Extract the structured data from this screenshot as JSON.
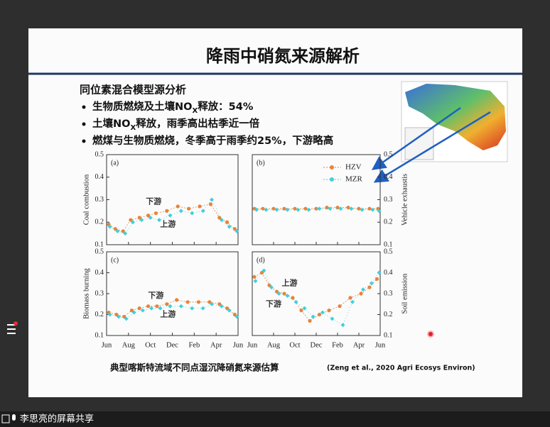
{
  "slide": {
    "title": "降雨中硝氮来源解析",
    "heading": "同位素混合模型源分析",
    "bullets": [
      {
        "before": "生物质燃烧及土壤NO",
        "sub": "X",
        "after": "释放：54%"
      },
      {
        "before": "土壤NO",
        "sub": "X",
        "after": "释放，雨季高出枯季近一倍"
      },
      {
        "before": "燃煤与生物质燃烧，冬季高于雨季约25%，下游略高",
        "sub": null,
        "after": null
      }
    ],
    "caption": "典型喀斯特流域不同点湿沉降硝氮来源估算",
    "citation": "(Zeng et al., 2020 Agri Ecosys Environ)"
  },
  "figure": {
    "legend": [
      {
        "name": "HZV",
        "color": "#e8833a"
      },
      {
        "name": "MZR",
        "color": "#3fd0dc"
      }
    ],
    "xlim": [
      0,
      12
    ],
    "xticks": [
      {
        "value": 0,
        "label": "Jun"
      },
      {
        "value": 2,
        "label": "Aug"
      },
      {
        "value": 4,
        "label": "Oct"
      },
      {
        "value": 6,
        "label": "Dec"
      },
      {
        "value": 8,
        "label": "Feb"
      },
      {
        "value": 10,
        "label": "Apr"
      },
      {
        "value": 12,
        "label": "Jun"
      }
    ],
    "ylim": [
      0.1,
      0.5
    ],
    "yticks": [
      0.1,
      0.2,
      0.3,
      0.4,
      0.5
    ],
    "panels": [
      {
        "letter": "(a)",
        "ylabel": "Coal combustion",
        "annotations": [
          "下游",
          "上游"
        ],
        "series": [
          {
            "x": [
              0.2,
              0.8,
              1.5,
              2.2,
              3.0,
              3.8,
              4.5,
              5.5,
              6.5,
              7.5,
              8.5,
              9.5,
              10.3,
              11.0,
              11.7
            ],
            "values": [
              0.19,
              0.17,
              0.16,
              0.21,
              0.22,
              0.23,
              0.24,
              0.25,
              0.27,
              0.26,
              0.27,
              0.28,
              0.22,
              0.2,
              0.17
            ]
          },
          {
            "x": [
              0.3,
              1.0,
              1.7,
              2.4,
              3.2,
              4.0,
              4.8,
              5.8,
              6.8,
              7.8,
              8.8,
              9.6,
              10.5,
              11.2,
              11.9
            ],
            "values": [
              0.18,
              0.16,
              0.15,
              0.2,
              0.21,
              0.22,
              0.21,
              0.23,
              0.25,
              0.24,
              0.25,
              0.3,
              0.21,
              0.18,
              0.16
            ]
          }
        ]
      },
      {
        "letter": "(b)",
        "ylabel": "Vehicle exhaustis",
        "annotations": [],
        "series": [
          {
            "x": [
              0.2,
              1.0,
              2.0,
              3.0,
              4.0,
              5.0,
              6.0,
              7.0,
              8.0,
              9.0,
              10.0,
              11.0,
              11.8
            ],
            "values": [
              0.26,
              0.26,
              0.26,
              0.26,
              0.26,
              0.26,
              0.26,
              0.265,
              0.265,
              0.265,
              0.26,
              0.26,
              0.26
            ]
          },
          {
            "x": [
              0.4,
              1.3,
              2.3,
              3.3,
              4.3,
              5.3,
              6.3,
              7.3,
              8.3,
              9.3,
              10.3,
              11.3,
              11.9
            ],
            "values": [
              0.255,
              0.255,
              0.255,
              0.255,
              0.255,
              0.255,
              0.26,
              0.26,
              0.26,
              0.26,
              0.255,
              0.255,
              0.25
            ]
          }
        ]
      },
      {
        "letter": "(c)",
        "ylabel": "Biomass burning",
        "annotations": [
          "下游",
          "上游"
        ],
        "series": [
          {
            "x": [
              0.2,
              0.9,
              1.6,
              2.3,
              3.0,
              3.8,
              4.6,
              5.5,
              6.4,
              7.4,
              8.4,
              9.4,
              10.3,
              11.0,
              11.7
            ],
            "values": [
              0.21,
              0.2,
              0.19,
              0.22,
              0.23,
              0.24,
              0.24,
              0.25,
              0.27,
              0.26,
              0.26,
              0.26,
              0.25,
              0.23,
              0.2
            ]
          },
          {
            "x": [
              0.3,
              1.1,
              1.8,
              2.5,
              3.3,
              4.1,
              4.9,
              5.8,
              6.8,
              7.8,
              8.8,
              9.6,
              10.5,
              11.2,
              11.9
            ],
            "values": [
              0.2,
              0.19,
              0.18,
              0.21,
              0.22,
              0.23,
              0.23,
              0.24,
              0.24,
              0.23,
              0.23,
              0.25,
              0.24,
              0.22,
              0.19
            ]
          }
        ]
      },
      {
        "letter": "(d)",
        "ylabel": "Soil emission",
        "annotations": [
          "上游",
          "下游"
        ],
        "series": [
          {
            "x": [
              0.2,
              0.9,
              1.6,
              2.3,
              3.0,
              3.8,
              4.6,
              5.4,
              6.3,
              7.2,
              8.2,
              9.2,
              10.2,
              11.0,
              11.7
            ],
            "values": [
              0.38,
              0.4,
              0.34,
              0.31,
              0.3,
              0.28,
              0.22,
              0.17,
              0.2,
              0.22,
              0.24,
              0.28,
              0.3,
              0.33,
              0.37
            ]
          },
          {
            "x": [
              0.3,
              1.1,
              1.8,
              2.5,
              3.3,
              4.1,
              4.9,
              5.7,
              6.6,
              7.5,
              8.5,
              9.4,
              10.4,
              11.2,
              11.9
            ],
            "values": [
              0.36,
              0.41,
              0.33,
              0.3,
              0.29,
              0.26,
              0.23,
              0.19,
              0.21,
              0.18,
              0.15,
              0.26,
              0.32,
              0.35,
              0.4
            ]
          }
        ]
      }
    ]
  },
  "footer": {
    "share": "李思亮的屏幕共享"
  }
}
